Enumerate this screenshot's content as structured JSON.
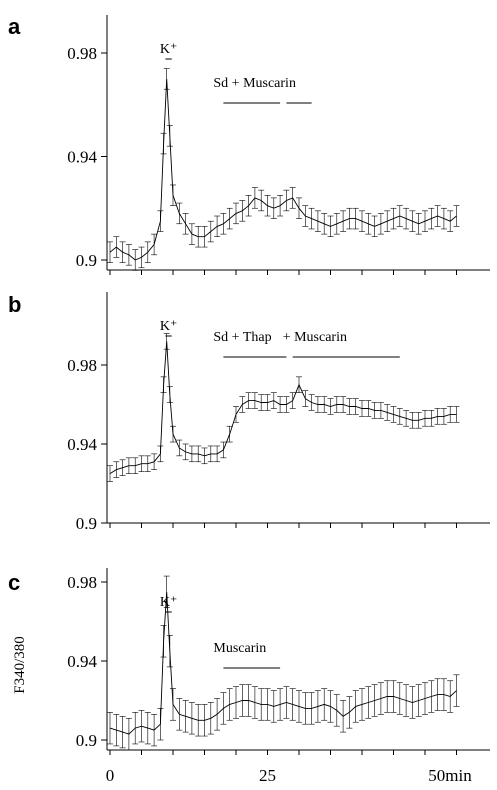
{
  "figure": {
    "x_ticks": [
      "0",
      "25",
      "50min"
    ],
    "y_axis_label_c": "F340/380"
  },
  "chart_data": [
    {
      "panel": "a",
      "type": "line",
      "ylim": [
        0.895,
        0.985
      ],
      "y_ticks": [
        "0.98",
        "0.94",
        "0.9"
      ],
      "y_tick_values": [
        0.98,
        0.94,
        0.9
      ],
      "xlim": [
        0,
        56
      ],
      "annotations": [
        {
          "text": "K⁺",
          "x_start": 8.8,
          "x_end": 9.8
        },
        {
          "text": "Sd  + Muscarin",
          "bars": [
            [
              18,
              27
            ],
            [
              28,
              32
            ]
          ]
        }
      ],
      "x": [
        0,
        1,
        2,
        3,
        4,
        5,
        6,
        7,
        8,
        8.5,
        9,
        9.5,
        10,
        11,
        12,
        13,
        14,
        15,
        16,
        17,
        18,
        19,
        20,
        21,
        22,
        23,
        24,
        25,
        26,
        27,
        28,
        29,
        30,
        31,
        32,
        33,
        34,
        35,
        36,
        37,
        38,
        39,
        40,
        41,
        42,
        43,
        44,
        45,
        46,
        47,
        48,
        49,
        50,
        51,
        52,
        53,
        54,
        55
      ],
      "y": [
        0.903,
        0.905,
        0.903,
        0.902,
        0.9,
        0.901,
        0.903,
        0.906,
        0.915,
        0.945,
        0.97,
        0.948,
        0.925,
        0.918,
        0.914,
        0.91,
        0.909,
        0.909,
        0.911,
        0.913,
        0.914,
        0.916,
        0.918,
        0.919,
        0.921,
        0.924,
        0.923,
        0.921,
        0.92,
        0.921,
        0.923,
        0.924,
        0.92,
        0.917,
        0.916,
        0.915,
        0.914,
        0.913,
        0.914,
        0.915,
        0.916,
        0.916,
        0.915,
        0.914,
        0.913,
        0.914,
        0.915,
        0.916,
        0.917,
        0.916,
        0.915,
        0.914,
        0.915,
        0.916,
        0.917,
        0.916,
        0.915,
        0.917
      ],
      "error": 0.004
    },
    {
      "panel": "b",
      "type": "line",
      "ylim": [
        0.898,
        1.003
      ],
      "y_ticks": [
        "0.98",
        "0.94",
        "0.9"
      ],
      "y_tick_values": [
        0.98,
        0.94,
        0.9
      ],
      "xlim": [
        0,
        56
      ],
      "annotations": [
        {
          "text": "K⁺",
          "x_start": 8.8,
          "x_end": 9.8
        },
        {
          "text": "Sd + Thap",
          "bars": [
            [
              18,
              28
            ]
          ]
        },
        {
          "text": "+  Muscarin",
          "bars": [
            [
              29,
              46
            ]
          ]
        }
      ],
      "x": [
        0,
        1,
        2,
        3,
        4,
        5,
        6,
        7,
        8,
        8.5,
        9,
        9.5,
        10,
        11,
        12,
        13,
        14,
        15,
        16,
        17,
        18,
        19,
        20,
        21,
        22,
        23,
        24,
        25,
        26,
        27,
        28,
        29,
        30,
        31,
        32,
        33,
        34,
        35,
        36,
        37,
        38,
        39,
        40,
        41,
        42,
        43,
        44,
        45,
        46,
        47,
        48,
        49,
        50,
        51,
        52,
        53,
        54,
        55
      ],
      "y": [
        0.925,
        0.927,
        0.928,
        0.929,
        0.929,
        0.93,
        0.93,
        0.931,
        0.935,
        0.97,
        0.992,
        0.965,
        0.945,
        0.938,
        0.936,
        0.935,
        0.935,
        0.934,
        0.935,
        0.935,
        0.937,
        0.945,
        0.955,
        0.96,
        0.962,
        0.962,
        0.961,
        0.961,
        0.962,
        0.96,
        0.96,
        0.962,
        0.97,
        0.963,
        0.961,
        0.96,
        0.96,
        0.959,
        0.96,
        0.96,
        0.959,
        0.959,
        0.958,
        0.958,
        0.957,
        0.957,
        0.956,
        0.955,
        0.954,
        0.953,
        0.952,
        0.952,
        0.953,
        0.953,
        0.954,
        0.954,
        0.955,
        0.955
      ],
      "error": 0.004
    },
    {
      "panel": "c",
      "type": "line",
      "ylabel": "F340/380",
      "ylim": [
        0.895,
        0.985
      ],
      "y_ticks": [
        "0.98",
        "0.94",
        "0.9"
      ],
      "y_tick_values": [
        0.98,
        0.94,
        0.9
      ],
      "xlim": [
        0,
        56
      ],
      "annotations": [
        {
          "text": "K⁺",
          "x_start": 8.8,
          "x_end": 9.8
        },
        {
          "text": "Muscarin",
          "bars": [
            [
              18,
              27
            ]
          ]
        }
      ],
      "x": [
        0,
        1,
        2,
        3,
        4,
        5,
        6,
        7,
        8,
        8.5,
        9,
        9.5,
        10,
        11,
        12,
        13,
        14,
        15,
        16,
        17,
        18,
        19,
        20,
        21,
        22,
        23,
        24,
        25,
        26,
        27,
        28,
        29,
        30,
        31,
        32,
        33,
        34,
        35,
        36,
        37,
        38,
        39,
        40,
        41,
        42,
        43,
        44,
        45,
        46,
        47,
        48,
        49,
        50,
        51,
        52,
        53,
        54,
        55
      ],
      "y": [
        0.906,
        0.905,
        0.904,
        0.903,
        0.906,
        0.907,
        0.906,
        0.905,
        0.908,
        0.95,
        0.975,
        0.945,
        0.918,
        0.913,
        0.912,
        0.911,
        0.91,
        0.91,
        0.911,
        0.913,
        0.916,
        0.918,
        0.919,
        0.92,
        0.92,
        0.919,
        0.918,
        0.918,
        0.917,
        0.918,
        0.919,
        0.918,
        0.917,
        0.916,
        0.916,
        0.917,
        0.918,
        0.917,
        0.915,
        0.912,
        0.914,
        0.917,
        0.918,
        0.919,
        0.92,
        0.921,
        0.922,
        0.922,
        0.921,
        0.92,
        0.919,
        0.92,
        0.921,
        0.922,
        0.923,
        0.923,
        0.922,
        0.925
      ],
      "error": 0.008
    }
  ]
}
